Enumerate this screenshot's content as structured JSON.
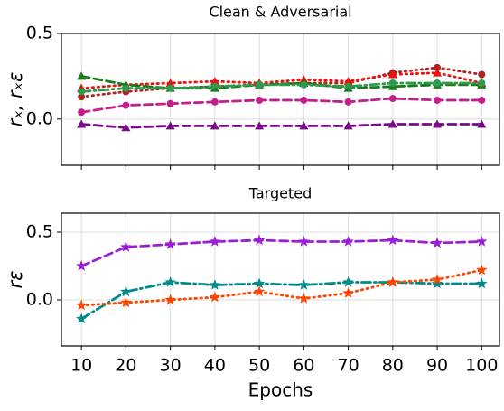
{
  "chart_data": [
    {
      "type": "line",
      "title": "Clean & Adversarial",
      "ylabel": "rₓ, rₓε",
      "x": [
        10,
        20,
        30,
        40,
        50,
        60,
        70,
        80,
        90,
        100
      ],
      "xlim": [
        5.5,
        104
      ],
      "xticks": [
        10,
        20,
        30,
        40,
        50,
        60,
        70,
        80,
        90,
        100
      ],
      "ylim": [
        -0.27,
        0.5
      ],
      "yticks": [
        {
          "value": 0.0,
          "label": "0.0"
        },
        0.5
      ],
      "grid": true,
      "series": [
        {
          "color": "#b22222",
          "marker": "circle",
          "linestyle": "dotted",
          "values": [
            0.13,
            0.16,
            0.18,
            0.19,
            0.2,
            0.21,
            0.21,
            0.27,
            0.3,
            0.26
          ]
        },
        {
          "color": "#e8150f",
          "marker": "triangle",
          "linestyle": "dotted",
          "values": [
            0.18,
            0.2,
            0.21,
            0.22,
            0.21,
            0.23,
            0.22,
            0.26,
            0.27,
            0.21
          ]
        },
        {
          "color": "#1a7a1a",
          "marker": "triangle",
          "linestyle": "dashed",
          "values": [
            0.25,
            0.2,
            0.18,
            0.18,
            0.2,
            0.21,
            0.18,
            0.19,
            0.2,
            0.2
          ]
        },
        {
          "color": "#2e9a4e",
          "marker": "circle",
          "linestyle": "dashdot",
          "values": [
            0.16,
            0.18,
            0.18,
            0.19,
            0.2,
            0.2,
            0.19,
            0.21,
            0.21,
            0.21
          ]
        },
        {
          "color": "#c41e8c",
          "marker": "circle",
          "linestyle": "dashed",
          "values": [
            0.04,
            0.08,
            0.09,
            0.1,
            0.11,
            0.11,
            0.1,
            0.12,
            0.11,
            0.11
          ]
        },
        {
          "color": "#7a0a8a",
          "marker": "triangle",
          "linestyle": "dashed",
          "values": [
            -0.03,
            -0.05,
            -0.04,
            -0.04,
            -0.04,
            -0.04,
            -0.04,
            -0.03,
            -0.03,
            -0.03
          ]
        }
      ]
    },
    {
      "type": "line",
      "title": "Targeted",
      "ylabel": "rε",
      "xlabel": "Epochs",
      "x": [
        10,
        20,
        30,
        40,
        50,
        60,
        70,
        80,
        90,
        100
      ],
      "xlim": [
        5.5,
        104
      ],
      "xticks": [
        10,
        20,
        30,
        40,
        50,
        60,
        70,
        80,
        90,
        100
      ],
      "ylim": [
        -0.34,
        0.64
      ],
      "yticks": [
        {
          "value": 0.0,
          "label": "0.0"
        },
        0.5
      ],
      "grid": true,
      "series": [
        {
          "color": "#9b1fd6",
          "marker": "star",
          "linestyle": "dashed",
          "values": [
            0.25,
            0.39,
            0.41,
            0.43,
            0.44,
            0.43,
            0.43,
            0.44,
            0.42,
            0.43
          ]
        },
        {
          "color": "#008b8b",
          "marker": "star",
          "linestyle": "dashdot",
          "values": [
            -0.14,
            0.06,
            0.13,
            0.11,
            0.12,
            0.11,
            0.13,
            0.13,
            0.12,
            0.12
          ]
        },
        {
          "color": "#ff4500",
          "marker": "star",
          "linestyle": "dotted",
          "values": [
            -0.04,
            -0.02,
            0.0,
            0.02,
            0.06,
            0.01,
            0.05,
            0.13,
            0.15,
            0.22
          ]
        }
      ]
    }
  ]
}
